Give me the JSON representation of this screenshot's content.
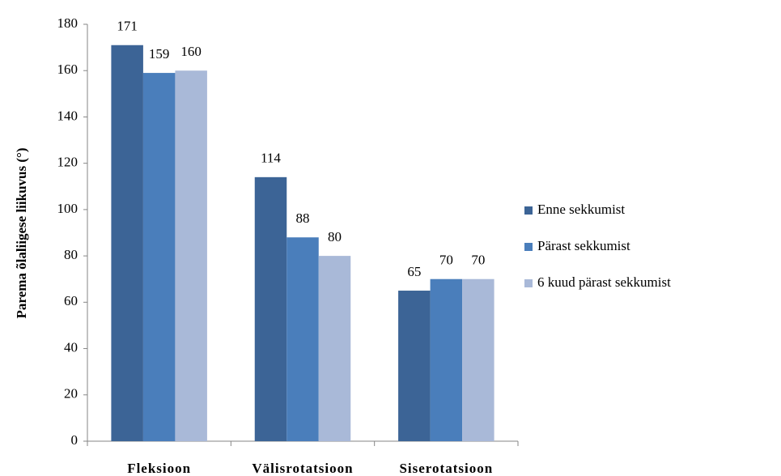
{
  "chart_data": {
    "type": "bar",
    "ylabel": "Parema õlaliigese liikuvus (°)",
    "categories": [
      "Fleksioon",
      "Välisrotatsioon",
      "Siserotatsioon"
    ],
    "series": [
      {
        "name": "Enne sekkumist",
        "color": "#3c6496",
        "values": [
          171,
          114,
          65
        ]
      },
      {
        "name": "Pärast sekkumist",
        "color": "#4a7ebb",
        "values": [
          159,
          88,
          70
        ]
      },
      {
        "name": "6 kuud pärast sekkumist",
        "color": "#a9b9d8",
        "values": [
          160,
          80,
          70
        ]
      }
    ],
    "ylim": [
      0,
      180
    ],
    "yticks": [
      0,
      20,
      40,
      60,
      80,
      100,
      120,
      140,
      160,
      180
    ],
    "grid": false,
    "legend": "right"
  }
}
